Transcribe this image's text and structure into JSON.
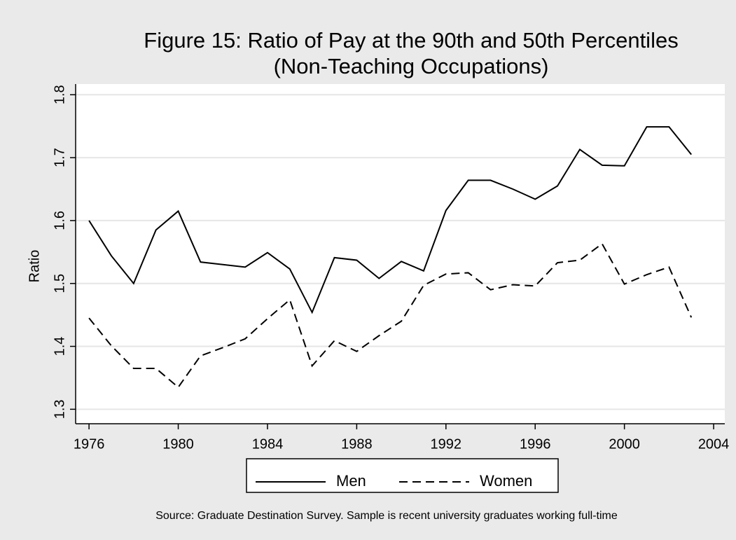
{
  "chart_data": {
    "type": "line",
    "title": "Figure 15: Ratio of Pay at the 90th and 50th Percentiles",
    "subtitle": "(Non-Teaching Occupations)",
    "y_label": "Ratio",
    "note": "Source: Graduate Destination Survey. Sample is recent university graduates working full-time",
    "x": [
      1976,
      1977,
      1978,
      1979,
      1980,
      1981,
      1982,
      1983,
      1984,
      1985,
      1986,
      1987,
      1988,
      1989,
      1990,
      1991,
      1992,
      1993,
      1994,
      1995,
      1996,
      1997,
      1998,
      1999,
      2000,
      2001,
      2002,
      2003
    ],
    "series": [
      {
        "name": "Men",
        "color": "#000000",
        "dash": "solid",
        "values": [
          1.6,
          1.544,
          1.5,
          1.585,
          1.615,
          1.534,
          1.53,
          1.526,
          1.549,
          1.523,
          1.454,
          1.541,
          1.537,
          1.508,
          1.535,
          1.52,
          1.616,
          1.664,
          1.664,
          1.65,
          1.634,
          1.655,
          1.713,
          1.688,
          1.687,
          1.749,
          1.749,
          1.705
        ]
      },
      {
        "name": "Women",
        "color": "#000000",
        "dash": "dashed",
        "values": [
          1.445,
          1.401,
          1.365,
          1.365,
          1.335,
          1.385,
          1.398,
          1.412,
          1.444,
          1.474,
          1.369,
          1.409,
          1.392,
          1.417,
          1.44,
          1.497,
          1.515,
          1.517,
          1.49,
          1.498,
          1.496,
          1.533,
          1.537,
          1.563,
          1.499,
          1.514,
          1.526,
          1.446
        ]
      }
    ],
    "xlim": [
      1975.4,
      2004.5
    ],
    "xticks": [
      1976,
      1980,
      1984,
      1988,
      1992,
      1996,
      2000,
      2004
    ],
    "ylim": [
      1.277,
      1.817
    ],
    "yticks": [
      1.3,
      1.4,
      1.5,
      1.6,
      1.7,
      1.8
    ],
    "grid": true,
    "legend": "bottom"
  }
}
